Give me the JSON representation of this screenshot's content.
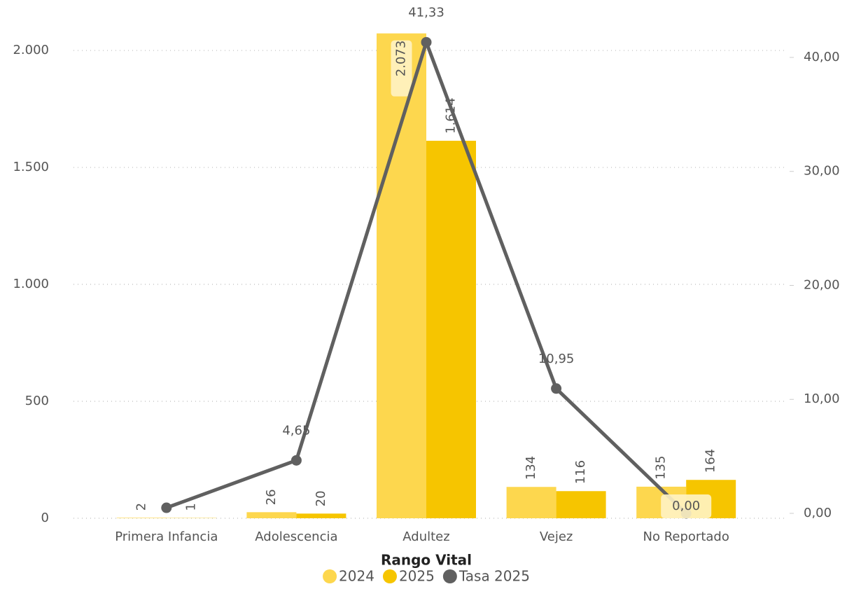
{
  "chart_data": {
    "type": "bar-line",
    "x_label": "Rango Vital",
    "categories": [
      "Primera Infancia",
      "Adolescencia",
      "Adultez",
      "Vejez",
      "No Reportado"
    ],
    "series": [
      {
        "name": "2024",
        "type": "bar",
        "color": "#fdd74e",
        "values": [
          2,
          26,
          2073,
          134,
          135
        ],
        "value_labels": [
          "2",
          "26",
          "2.073",
          "134",
          "135"
        ]
      },
      {
        "name": "2025",
        "type": "bar",
        "color": "#f6c500",
        "values": [
          1,
          20,
          1614,
          116,
          164
        ],
        "value_labels": [
          "1",
          "20",
          "1.614",
          "116",
          "164"
        ]
      },
      {
        "name": "Tasa 2025",
        "type": "line",
        "axis": "y2",
        "color": "#606060",
        "values": [
          0.49,
          4.65,
          41.33,
          10.95,
          0.0
        ],
        "value_labels": [
          null,
          "4,65",
          "41,33",
          "10,95",
          "0,00"
        ]
      }
    ],
    "ylim": [
      0,
      2096
    ],
    "yticks": [
      0,
      500,
      {
        "value": 1000,
        "label": "1.000"
      },
      {
        "value": 1500,
        "label": "1.500"
      },
      {
        "value": 2000,
        "label": "2.000"
      }
    ],
    "y2lim": [
      -0.43,
      42.58
    ],
    "y2ticks": [
      {
        "value": 0,
        "label": "0,00"
      },
      {
        "value": 10,
        "label": "10,00"
      },
      {
        "value": 20,
        "label": "20,00"
      },
      {
        "value": 30,
        "label": "30,00"
      },
      {
        "value": 40,
        "label": "40,00"
      }
    ],
    "grid": true,
    "legend": "bottom"
  }
}
